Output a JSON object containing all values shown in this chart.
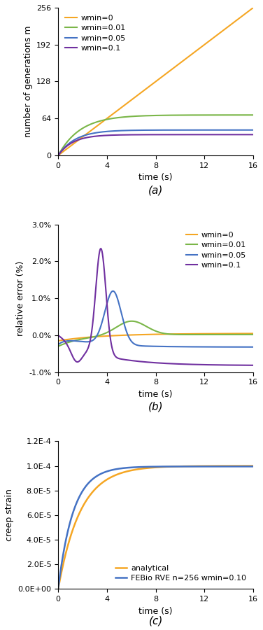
{
  "colors": {
    "wmin0": "#F5A623",
    "wmin001": "#7AB648",
    "wmin005": "#4472C4",
    "wmin01": "#7030A0"
  },
  "subplot_a": {
    "title": "(a)",
    "xlabel": "time (s)",
    "ylabel": "number of generations m",
    "xlim": [
      0,
      16
    ],
    "ylim": [
      0,
      256
    ],
    "yticks": [
      0,
      64,
      128,
      192,
      256
    ],
    "xticks": [
      0,
      4,
      8,
      12,
      16
    ]
  },
  "subplot_b": {
    "title": "(b)",
    "xlabel": "time (s)",
    "ylabel": "relative error (%)",
    "xlim": [
      0,
      16
    ],
    "ylim": [
      -1.0,
      3.0
    ],
    "yticks": [
      -1.0,
      0.0,
      1.0,
      2.0,
      3.0
    ],
    "xticks": [
      0,
      4,
      8,
      12,
      16
    ]
  },
  "subplot_c": {
    "title": "(c)",
    "xlabel": "time (s)",
    "ylabel": "creep strain",
    "xlim": [
      0,
      16
    ],
    "ylim": [
      0,
      0.00012
    ],
    "yticks": [
      0,
      2e-05,
      4e-05,
      6e-05,
      8e-05,
      0.0001,
      0.00012
    ],
    "xticks": [
      0,
      4,
      8,
      12,
      16
    ]
  },
  "legend_a": {
    "wmin0": "wmin=0",
    "wmin001": "wmin=0.01",
    "wmin005": "wmin=0.05",
    "wmin01": "wmin=0.1"
  },
  "legend_b": {
    "wmin0": "wmin=0",
    "wmin001": "wmin=0.01",
    "wmin005": "wmin=0.05",
    "wmin01": "wmin=0.1"
  },
  "legend_c": {
    "analytical": "analytical",
    "febio": "FEBio RVE n=256 wmin=0.10"
  },
  "analytical_color": "#F5A623",
  "febio_color": "#4472C4"
}
